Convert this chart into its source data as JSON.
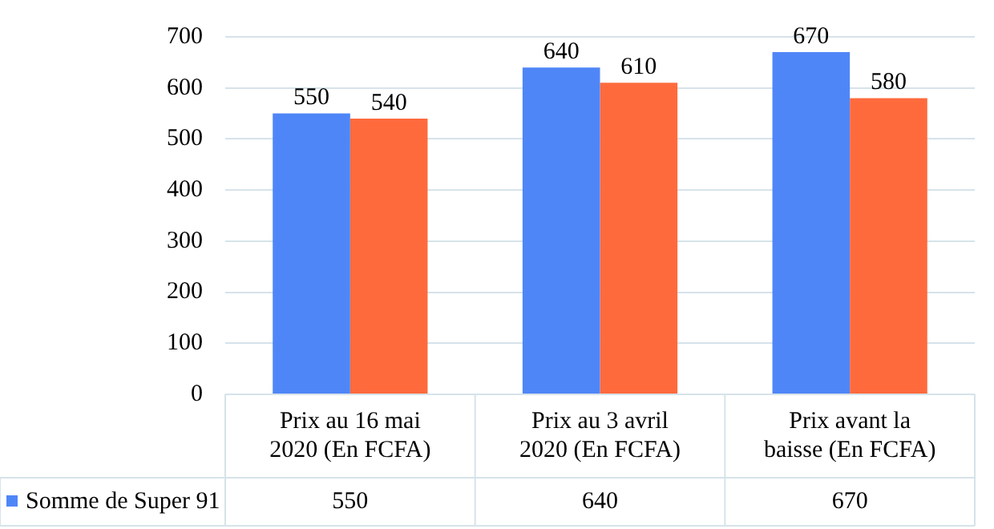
{
  "chart_data": {
    "type": "bar",
    "categories": [
      "Prix au 16 mai 2020 (En FCFA)",
      "Prix au 3 avril 2020 (En FCFA)",
      "Prix avant la baisse (En FCFA)"
    ],
    "series": [
      {
        "name": "Somme de Super 91",
        "color": "#4f86f7",
        "values": [
          550,
          640,
          670
        ],
        "value_labels": [
          "550",
          "640",
          "670"
        ]
      },
      {
        "color": "#ff6a3d",
        "values": [
          540,
          610,
          580
        ],
        "value_labels": [
          "540",
          "610",
          "580"
        ]
      }
    ],
    "ylim": [
      0,
      700
    ],
    "yticks": [
      0,
      100,
      200,
      300,
      400,
      500,
      600,
      700
    ],
    "grid": "y",
    "legend": "bottom",
    "annotations": [
      "550",
      "640",
      "670"
    ]
  }
}
